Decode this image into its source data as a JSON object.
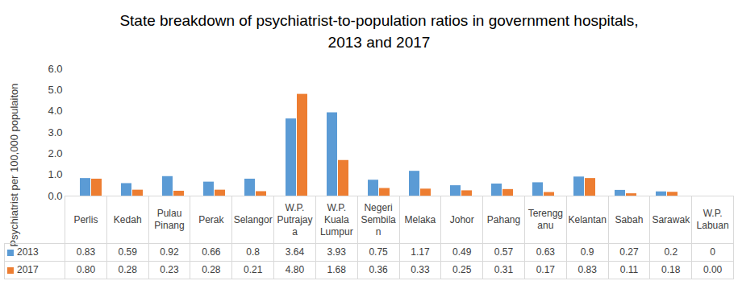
{
  "chart_data": {
    "type": "bar",
    "title": "State breakdown of psychiatrist-to-population ratios in government hospitals, 2013 and 2017",
    "ylabel": "Psychiatrist per 100,000 populaiton",
    "categories": [
      "Perlis",
      "Kedah",
      "Pulau Pinang",
      "Perak",
      "Selangor",
      "W.P. Putrajaya",
      "W.P. Kuala Lumpur",
      "Negeri Sembilan",
      "Melaka",
      "Johor",
      "Pahang",
      "Terengganu",
      "Kelantan",
      "Sabah",
      "Sarawak",
      "W.P. Labuan"
    ],
    "series": [
      {
        "name": "2013",
        "color": "#5b9bd5",
        "values": [
          0.83,
          0.59,
          0.92,
          0.66,
          0.8,
          3.64,
          3.93,
          0.75,
          1.17,
          0.49,
          0.57,
          0.63,
          0.9,
          0.27,
          0.2,
          0
        ],
        "value_labels": [
          "0.83",
          "0.59",
          "0.92",
          "0.66",
          "0.8",
          "3.64",
          "3.93",
          "0.75",
          "1.17",
          "0.49",
          "0.57",
          "0.63",
          "0.9",
          "0.27",
          "0.2",
          "0"
        ]
      },
      {
        "name": "2017",
        "color": "#ed7d31",
        "values": [
          0.8,
          0.28,
          0.23,
          0.28,
          0.21,
          4.8,
          1.68,
          0.36,
          0.33,
          0.25,
          0.31,
          0.17,
          0.83,
          0.11,
          0.18,
          0
        ],
        "value_labels": [
          "0.80",
          "0.28",
          "0.23",
          "0.28",
          "0.21",
          "4.80",
          "1.68",
          "0.36",
          "0.33",
          "0.25",
          "0.31",
          "0.17",
          "0.83",
          "0.11",
          "0.18",
          "0.00"
        ]
      }
    ],
    "ylim": [
      0,
      6
    ],
    "yticks": [
      0,
      1,
      2,
      3,
      4,
      5,
      6
    ],
    "grid": false
  }
}
